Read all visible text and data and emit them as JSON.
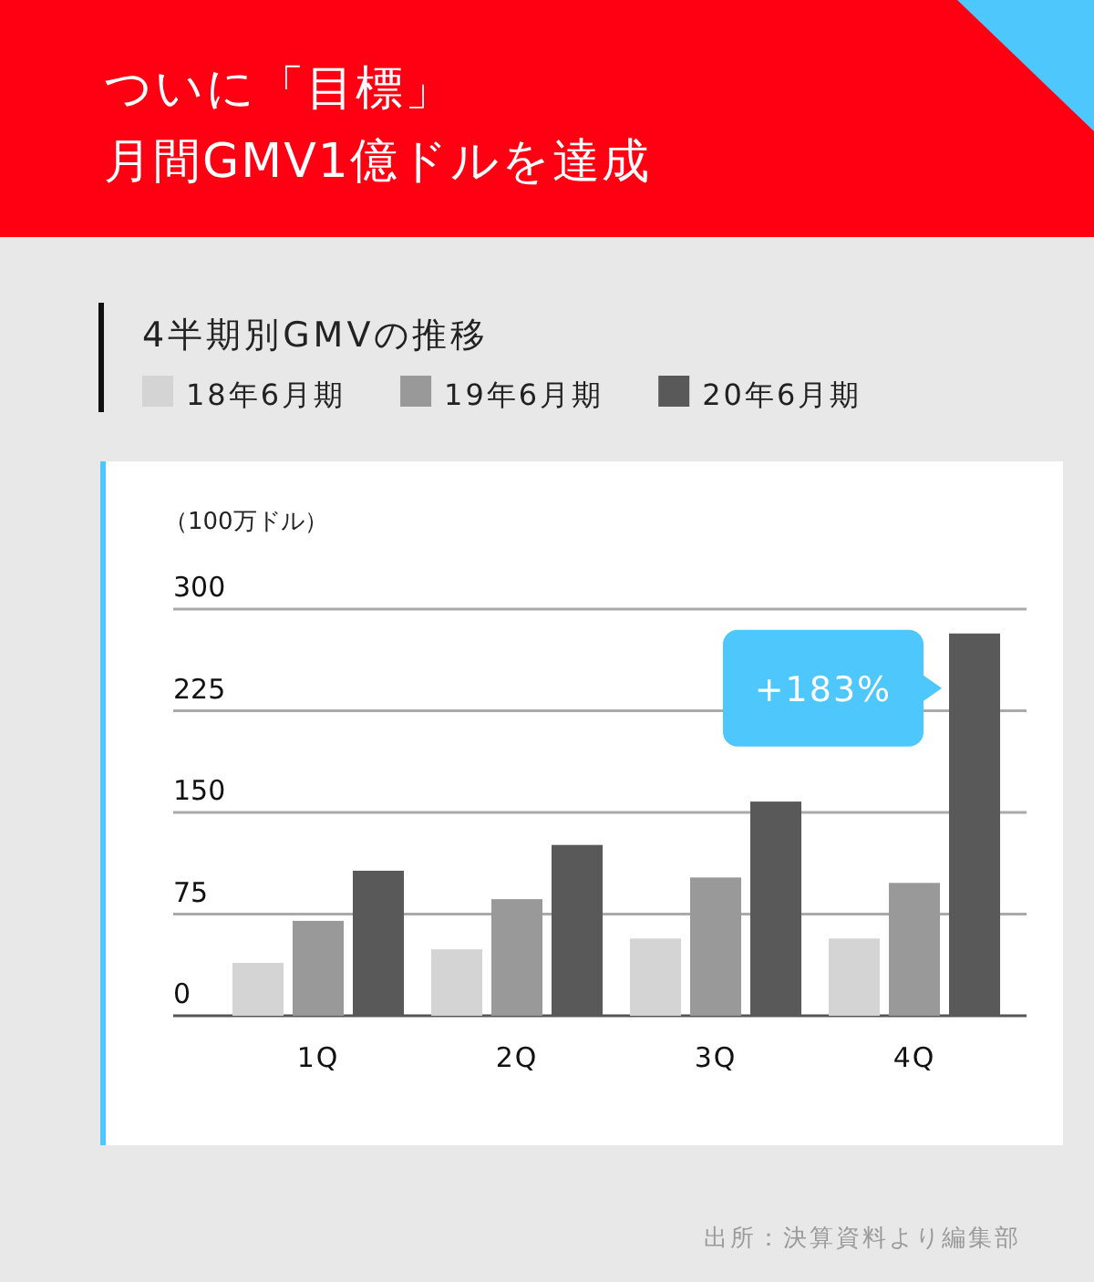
{
  "chart_data": {
    "type": "bar",
    "title": "ついに「目標」月間GMV1億ドルを達成",
    "subtitle": "4半期別GMVの推移",
    "ylabel": "（100万ドル）",
    "categories": [
      "1Q",
      "2Q",
      "3Q",
      "4Q"
    ],
    "series": [
      {
        "name": "18年6月期",
        "color": "#d4d4d4",
        "values": [
          39,
          49,
          57,
          57
        ]
      },
      {
        "name": "19年6月期",
        "color": "#999999",
        "values": [
          70,
          86,
          102,
          98
        ]
      },
      {
        "name": "20年6月期",
        "color": "#595959",
        "values": [
          107,
          126,
          158,
          282
        ]
      }
    ],
    "ylim": [
      0,
      300
    ],
    "yticks": [
      0,
      75,
      150,
      225,
      300
    ],
    "grid": "y",
    "legend": "top left",
    "annotations": [
      "+183%",
      "出所：決算資料より編集部"
    ]
  }
}
